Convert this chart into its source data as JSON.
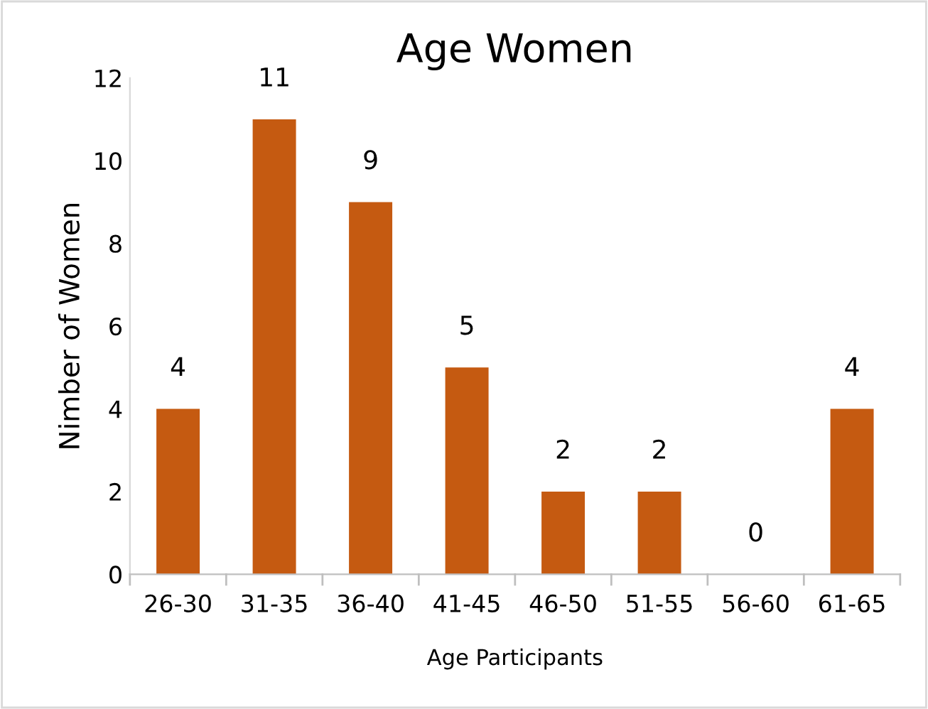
{
  "chart_data": {
    "type": "bar",
    "title": "Age Women",
    "xlabel": "Age Participants",
    "ylabel": "Nimber of Women",
    "categories": [
      "26-30",
      "31-35",
      "36-40",
      "41-45",
      "46-50",
      "51-55",
      "56-60",
      "61-65"
    ],
    "values": [
      4,
      11,
      9,
      5,
      2,
      2,
      0,
      4
    ],
    "color": "#c55a11",
    "ylim": [
      0,
      12
    ],
    "yticks": [
      0,
      2,
      4,
      6,
      8,
      10,
      12
    ],
    "data_labels": true,
    "grid": false,
    "legend": false
  }
}
